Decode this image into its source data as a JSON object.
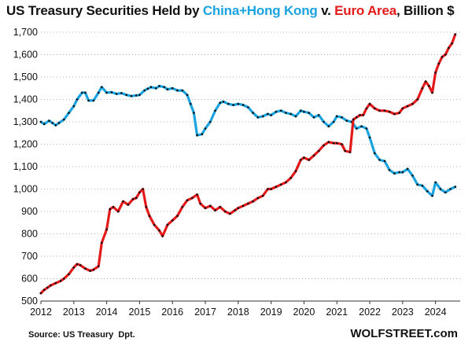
{
  "chart_data": {
    "type": "line",
    "title": {
      "prefix": "US Treasury Securities Held by ",
      "series_a": "China+Hong Kong",
      "mid": " v. ",
      "series_b": "Euro Area",
      "suffix": ", Billion $"
    },
    "xlabel": "",
    "ylabel": "",
    "ylim": [
      500,
      1700
    ],
    "y_ticks": [
      {
        "value": 500,
        "label": "500"
      },
      {
        "value": 600,
        "label": "600"
      },
      {
        "value": 700,
        "label": "700"
      },
      {
        "value": 800,
        "label": "800"
      },
      {
        "value": 900,
        "label": "900"
      },
      {
        "value": 1000,
        "label": "1,000"
      },
      {
        "value": 1100,
        "label": "1,100"
      },
      {
        "value": 1200,
        "label": "1,200"
      },
      {
        "value": 1300,
        "label": "1,300"
      },
      {
        "value": 1400,
        "label": "1,400"
      },
      {
        "value": 1500,
        "label": "1,500"
      },
      {
        "value": 1600,
        "label": "1,600"
      },
      {
        "value": 1700,
        "label": "1,700"
      }
    ],
    "xlim": [
      2012,
      2024.75
    ],
    "x_ticks": [
      {
        "value": 2012,
        "label": "2012"
      },
      {
        "value": 2013,
        "label": "2013"
      },
      {
        "value": 2014,
        "label": "2014"
      },
      {
        "value": 2015,
        "label": "2015"
      },
      {
        "value": 2016,
        "label": "2016"
      },
      {
        "value": 2017,
        "label": "2017"
      },
      {
        "value": 2018,
        "label": "2018"
      },
      {
        "value": 2019,
        "label": "2019"
      },
      {
        "value": 2020,
        "label": "2020"
      },
      {
        "value": 2021,
        "label": "2021"
      },
      {
        "value": 2022,
        "label": "2022"
      },
      {
        "value": 2023,
        "label": "2023"
      },
      {
        "value": 2024,
        "label": "2024"
      }
    ],
    "grid": "horizontal-dotted",
    "series": [
      {
        "name": "China+Hong Kong",
        "color": "#1aa3e0",
        "x": [
          2012.0,
          2012.1,
          2012.25,
          2012.35,
          2012.45,
          2012.55,
          2012.7,
          2012.85,
          2013.0,
          2013.1,
          2013.25,
          2013.35,
          2013.45,
          2013.6,
          2013.75,
          2013.85,
          2014.0,
          2014.15,
          2014.3,
          2014.45,
          2014.6,
          2014.75,
          2014.9,
          2015.0,
          2015.15,
          2015.25,
          2015.35,
          2015.5,
          2015.6,
          2015.75,
          2015.85,
          2016.0,
          2016.15,
          2016.3,
          2016.45,
          2016.55,
          2016.65,
          2016.75,
          2016.9,
          2017.0,
          2017.15,
          2017.3,
          2017.45,
          2017.55,
          2017.7,
          2017.85,
          2018.0,
          2018.15,
          2018.3,
          2018.45,
          2018.6,
          2018.75,
          2018.9,
          2019.0,
          2019.15,
          2019.3,
          2019.45,
          2019.6,
          2019.75,
          2019.9,
          2020.0,
          2020.15,
          2020.3,
          2020.45,
          2020.6,
          2020.75,
          2020.9,
          2021.0,
          2021.15,
          2021.3,
          2021.45,
          2021.6,
          2021.75,
          2021.9,
          2022.0,
          2022.15,
          2022.3,
          2022.45,
          2022.6,
          2022.75,
          2022.9,
          2023.0,
          2023.15,
          2023.3,
          2023.45,
          2023.6,
          2023.75,
          2023.9,
          2024.0,
          2024.15,
          2024.3,
          2024.45,
          2024.6
        ],
        "values": [
          1300,
          1290,
          1305,
          1295,
          1285,
          1295,
          1310,
          1340,
          1370,
          1400,
          1430,
          1430,
          1395,
          1395,
          1430,
          1455,
          1430,
          1432,
          1425,
          1428,
          1420,
          1415,
          1418,
          1420,
          1440,
          1448,
          1455,
          1450,
          1460,
          1455,
          1445,
          1450,
          1440,
          1440,
          1420,
          1380,
          1340,
          1240,
          1245,
          1270,
          1300,
          1350,
          1385,
          1390,
          1380,
          1375,
          1380,
          1375,
          1365,
          1340,
          1320,
          1325,
          1335,
          1330,
          1345,
          1350,
          1340,
          1335,
          1325,
          1350,
          1345,
          1340,
          1320,
          1330,
          1300,
          1280,
          1300,
          1325,
          1320,
          1305,
          1300,
          1270,
          1280,
          1270,
          1230,
          1160,
          1130,
          1125,
          1085,
          1070,
          1075,
          1075,
          1090,
          1060,
          1020,
          1015,
          990,
          970,
          1030,
          1000,
          985,
          1000,
          1010
        ]
      },
      {
        "name": "Euro Area",
        "color": "#e41a1a",
        "x": [
          2012.0,
          2012.1,
          2012.2,
          2012.3,
          2012.45,
          2012.6,
          2012.7,
          2012.85,
          2013.0,
          2013.1,
          2013.2,
          2013.35,
          2013.5,
          2013.6,
          2013.75,
          2013.85,
          2014.0,
          2014.1,
          2014.2,
          2014.35,
          2014.5,
          2014.65,
          2014.8,
          2014.9,
          2015.0,
          2015.1,
          2015.2,
          2015.3,
          2015.45,
          2015.6,
          2015.7,
          2015.85,
          2016.0,
          2016.15,
          2016.3,
          2016.45,
          2016.6,
          2016.75,
          2016.85,
          2017.0,
          2017.15,
          2017.3,
          2017.45,
          2017.6,
          2017.75,
          2017.9,
          2018.0,
          2018.15,
          2018.3,
          2018.45,
          2018.6,
          2018.75,
          2018.9,
          2019.0,
          2019.15,
          2019.3,
          2019.45,
          2019.6,
          2019.75,
          2019.9,
          2020.0,
          2020.15,
          2020.3,
          2020.45,
          2020.6,
          2020.75,
          2020.9,
          2021.0,
          2021.15,
          2021.25,
          2021.4,
          2021.5,
          2021.6,
          2021.7,
          2021.8,
          2021.9,
          2022.0,
          2022.15,
          2022.3,
          2022.45,
          2022.6,
          2022.75,
          2022.9,
          2023.0,
          2023.15,
          2023.3,
          2023.45,
          2023.6,
          2023.7,
          2023.8,
          2023.9,
          2024.0,
          2024.1,
          2024.2,
          2024.3,
          2024.4,
          2024.5,
          2024.6
        ],
        "values": [
          535,
          550,
          560,
          570,
          580,
          590,
          600,
          620,
          650,
          665,
          660,
          645,
          635,
          640,
          655,
          760,
          820,
          910,
          920,
          900,
          945,
          930,
          955,
          960,
          985,
          1000,
          920,
          880,
          840,
          815,
          790,
          840,
          860,
          880,
          920,
          950,
          960,
          975,
          935,
          915,
          925,
          905,
          920,
          900,
          890,
          905,
          915,
          925,
          935,
          945,
          960,
          970,
          1000,
          1000,
          1010,
          1020,
          1030,
          1050,
          1080,
          1130,
          1140,
          1130,
          1150,
          1170,
          1195,
          1210,
          1205,
          1205,
          1200,
          1170,
          1165,
          1310,
          1320,
          1330,
          1330,
          1360,
          1380,
          1360,
          1350,
          1350,
          1345,
          1335,
          1340,
          1360,
          1370,
          1380,
          1400,
          1450,
          1480,
          1460,
          1430,
          1520,
          1560,
          1590,
          1600,
          1630,
          1650,
          1690
        ]
      }
    ]
  },
  "footer": {
    "source": "Source: US Treasury  Dpt.",
    "brand": "WOLFSTREET.com"
  }
}
